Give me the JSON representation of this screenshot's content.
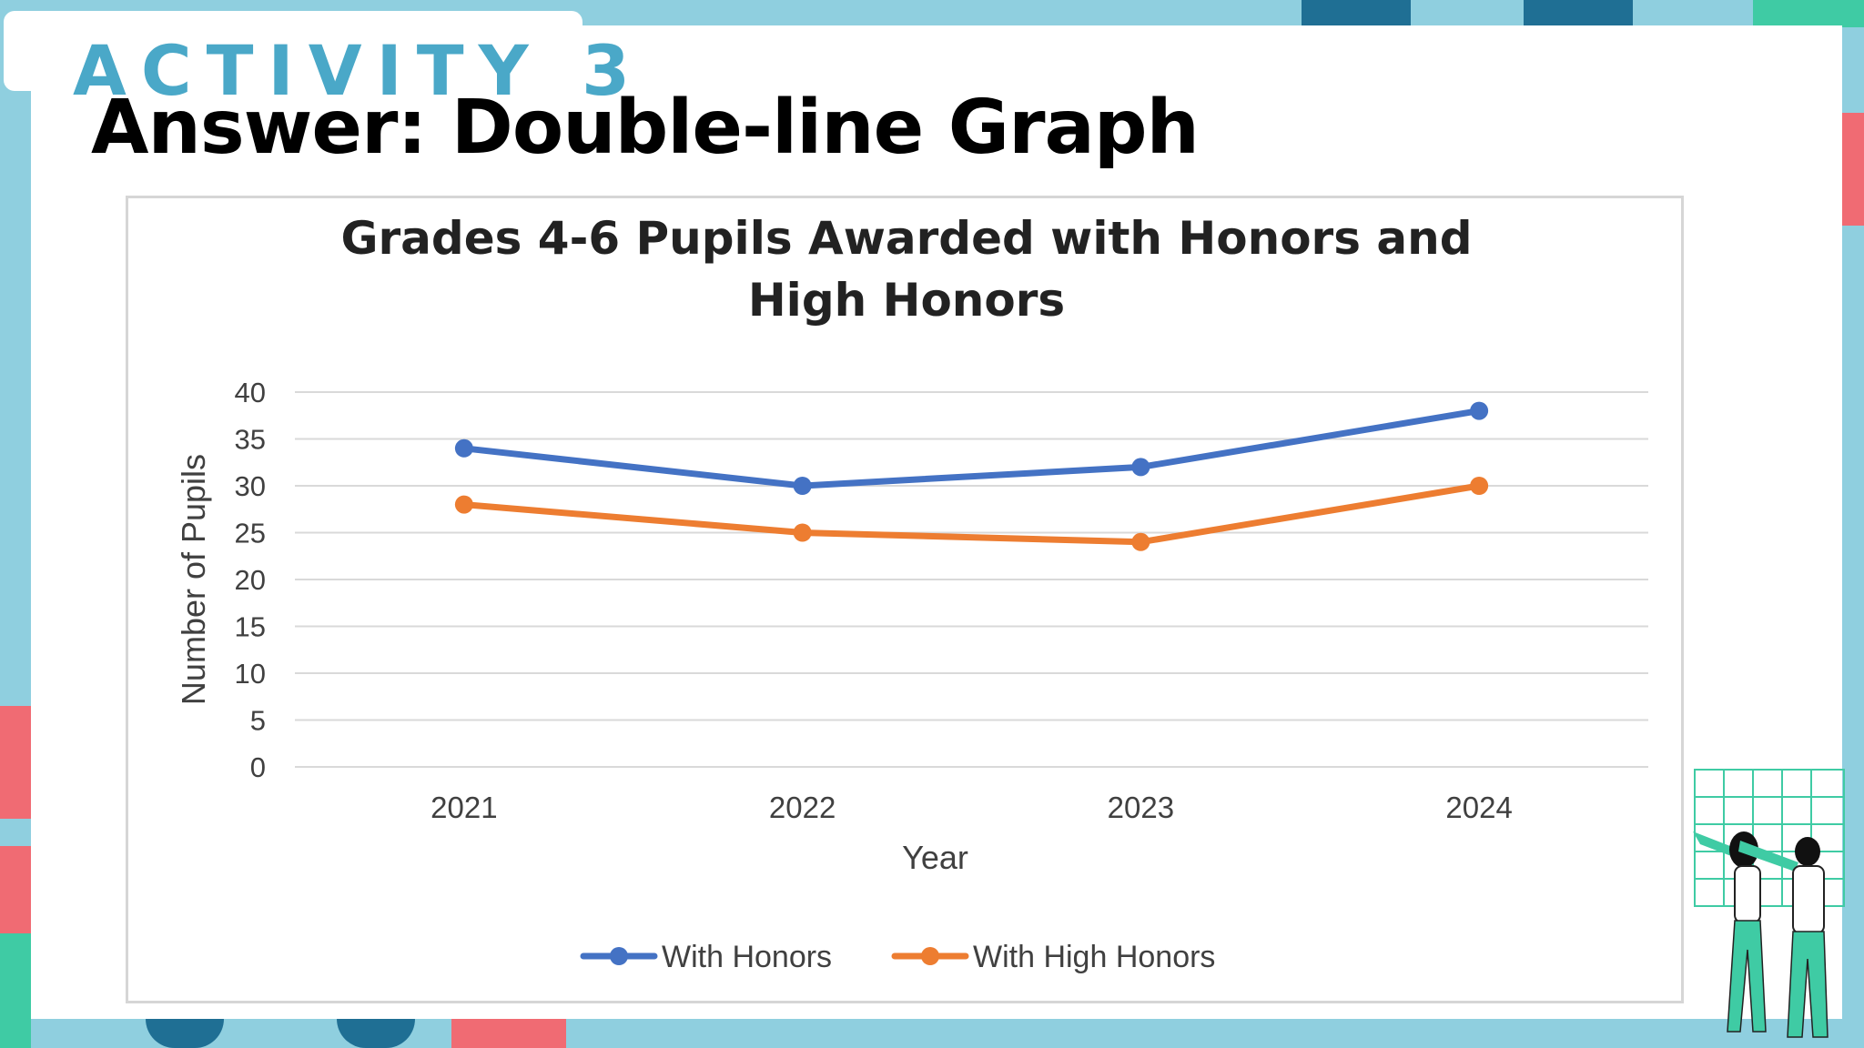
{
  "slide": {
    "activity_label": "ACTIVITY 3",
    "title": "Answer: Double-line Graph"
  },
  "theme": {
    "background": "#8fcfdf",
    "accent_teal": "#3fcba4",
    "accent_navy": "#1f6f94",
    "accent_red": "#f06b73",
    "heading_blue": "#4aa8c8"
  },
  "chart_data": {
    "type": "line",
    "title": "Grades 4-6 Pupils Awarded with Honors and High Honors",
    "xlabel": "Year",
    "ylabel": "Number of Pupils",
    "categories": [
      "2021",
      "2022",
      "2023",
      "2024"
    ],
    "ylim": [
      0,
      40
    ],
    "yticks": [
      0,
      5,
      10,
      15,
      20,
      25,
      30,
      35,
      40
    ],
    "grid": true,
    "legend_position": "bottom",
    "series": [
      {
        "name": "With Honors",
        "color": "#4472c4",
        "values": [
          34,
          30,
          32,
          38
        ]
      },
      {
        "name": "With High Honors",
        "color": "#ed7d31",
        "values": [
          28,
          25,
          24,
          30
        ]
      }
    ]
  }
}
